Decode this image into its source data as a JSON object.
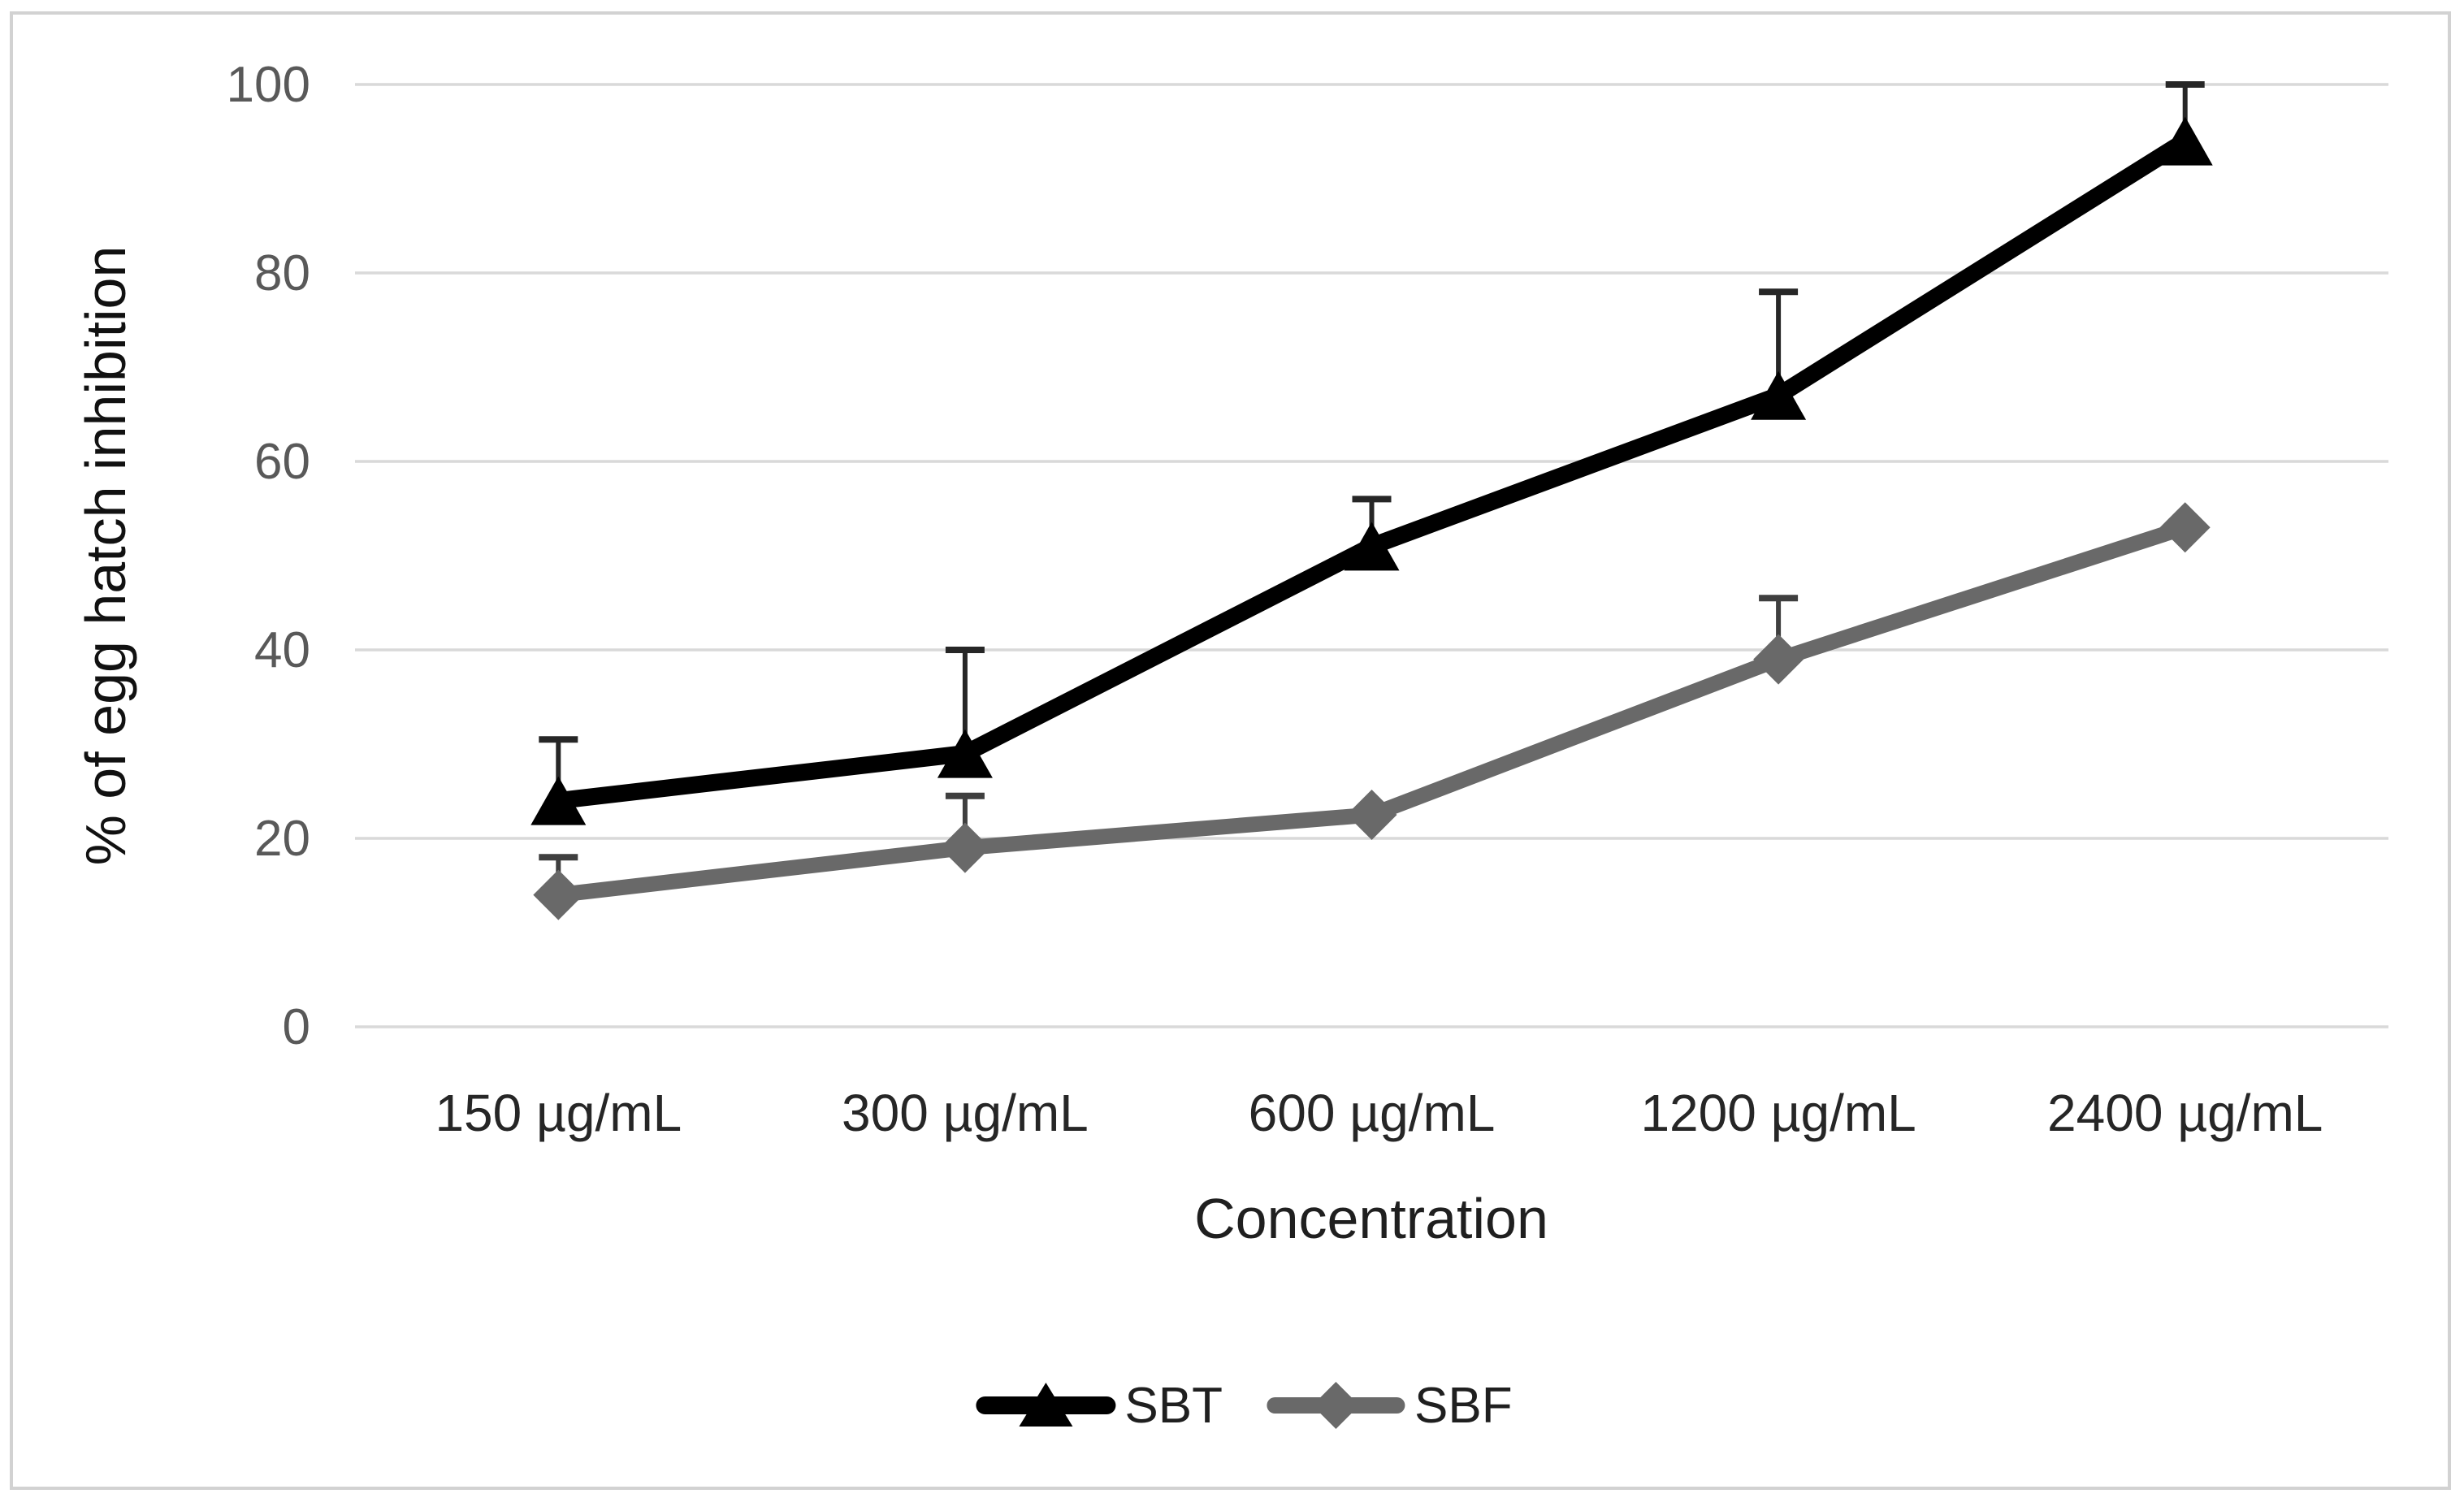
{
  "chart_data": {
    "type": "line",
    "title": "",
    "xlabel": "Concentration",
    "ylabel": "% of egg hatch inhibition",
    "categories": [
      "150 µg/mL",
      "300 µg/mL",
      "600 µg/mL",
      "1200 µg/mL",
      "2400 µg/mL"
    ],
    "x_axis_type": "categorical",
    "ylim": [
      0,
      100
    ],
    "yticks": [
      0,
      20,
      40,
      60,
      80,
      100
    ],
    "grid": "horizontal",
    "gridline_color": "#d9d9d9",
    "axis_tick_label_color_y": "#595959",
    "axis_tick_label_color_x": "#262626",
    "background": "#ffffff",
    "border_color": "#d2d2d2",
    "legend_position": "bottom",
    "series": [
      {
        "name": "SBT",
        "marker": "triangle",
        "color": "#000000",
        "error_color": "#262626",
        "values": [
          24,
          29,
          51,
          67,
          94
        ],
        "error_up": [
          6.5,
          11,
          5,
          11,
          6
        ]
      },
      {
        "name": "SBF",
        "marker": "diamond",
        "color": "#696969",
        "error_color": "#3f3f3f",
        "values": [
          14,
          19,
          22.5,
          39,
          53
        ],
        "error_up": [
          4,
          5.5,
          0,
          6.5,
          0
        ]
      }
    ]
  }
}
